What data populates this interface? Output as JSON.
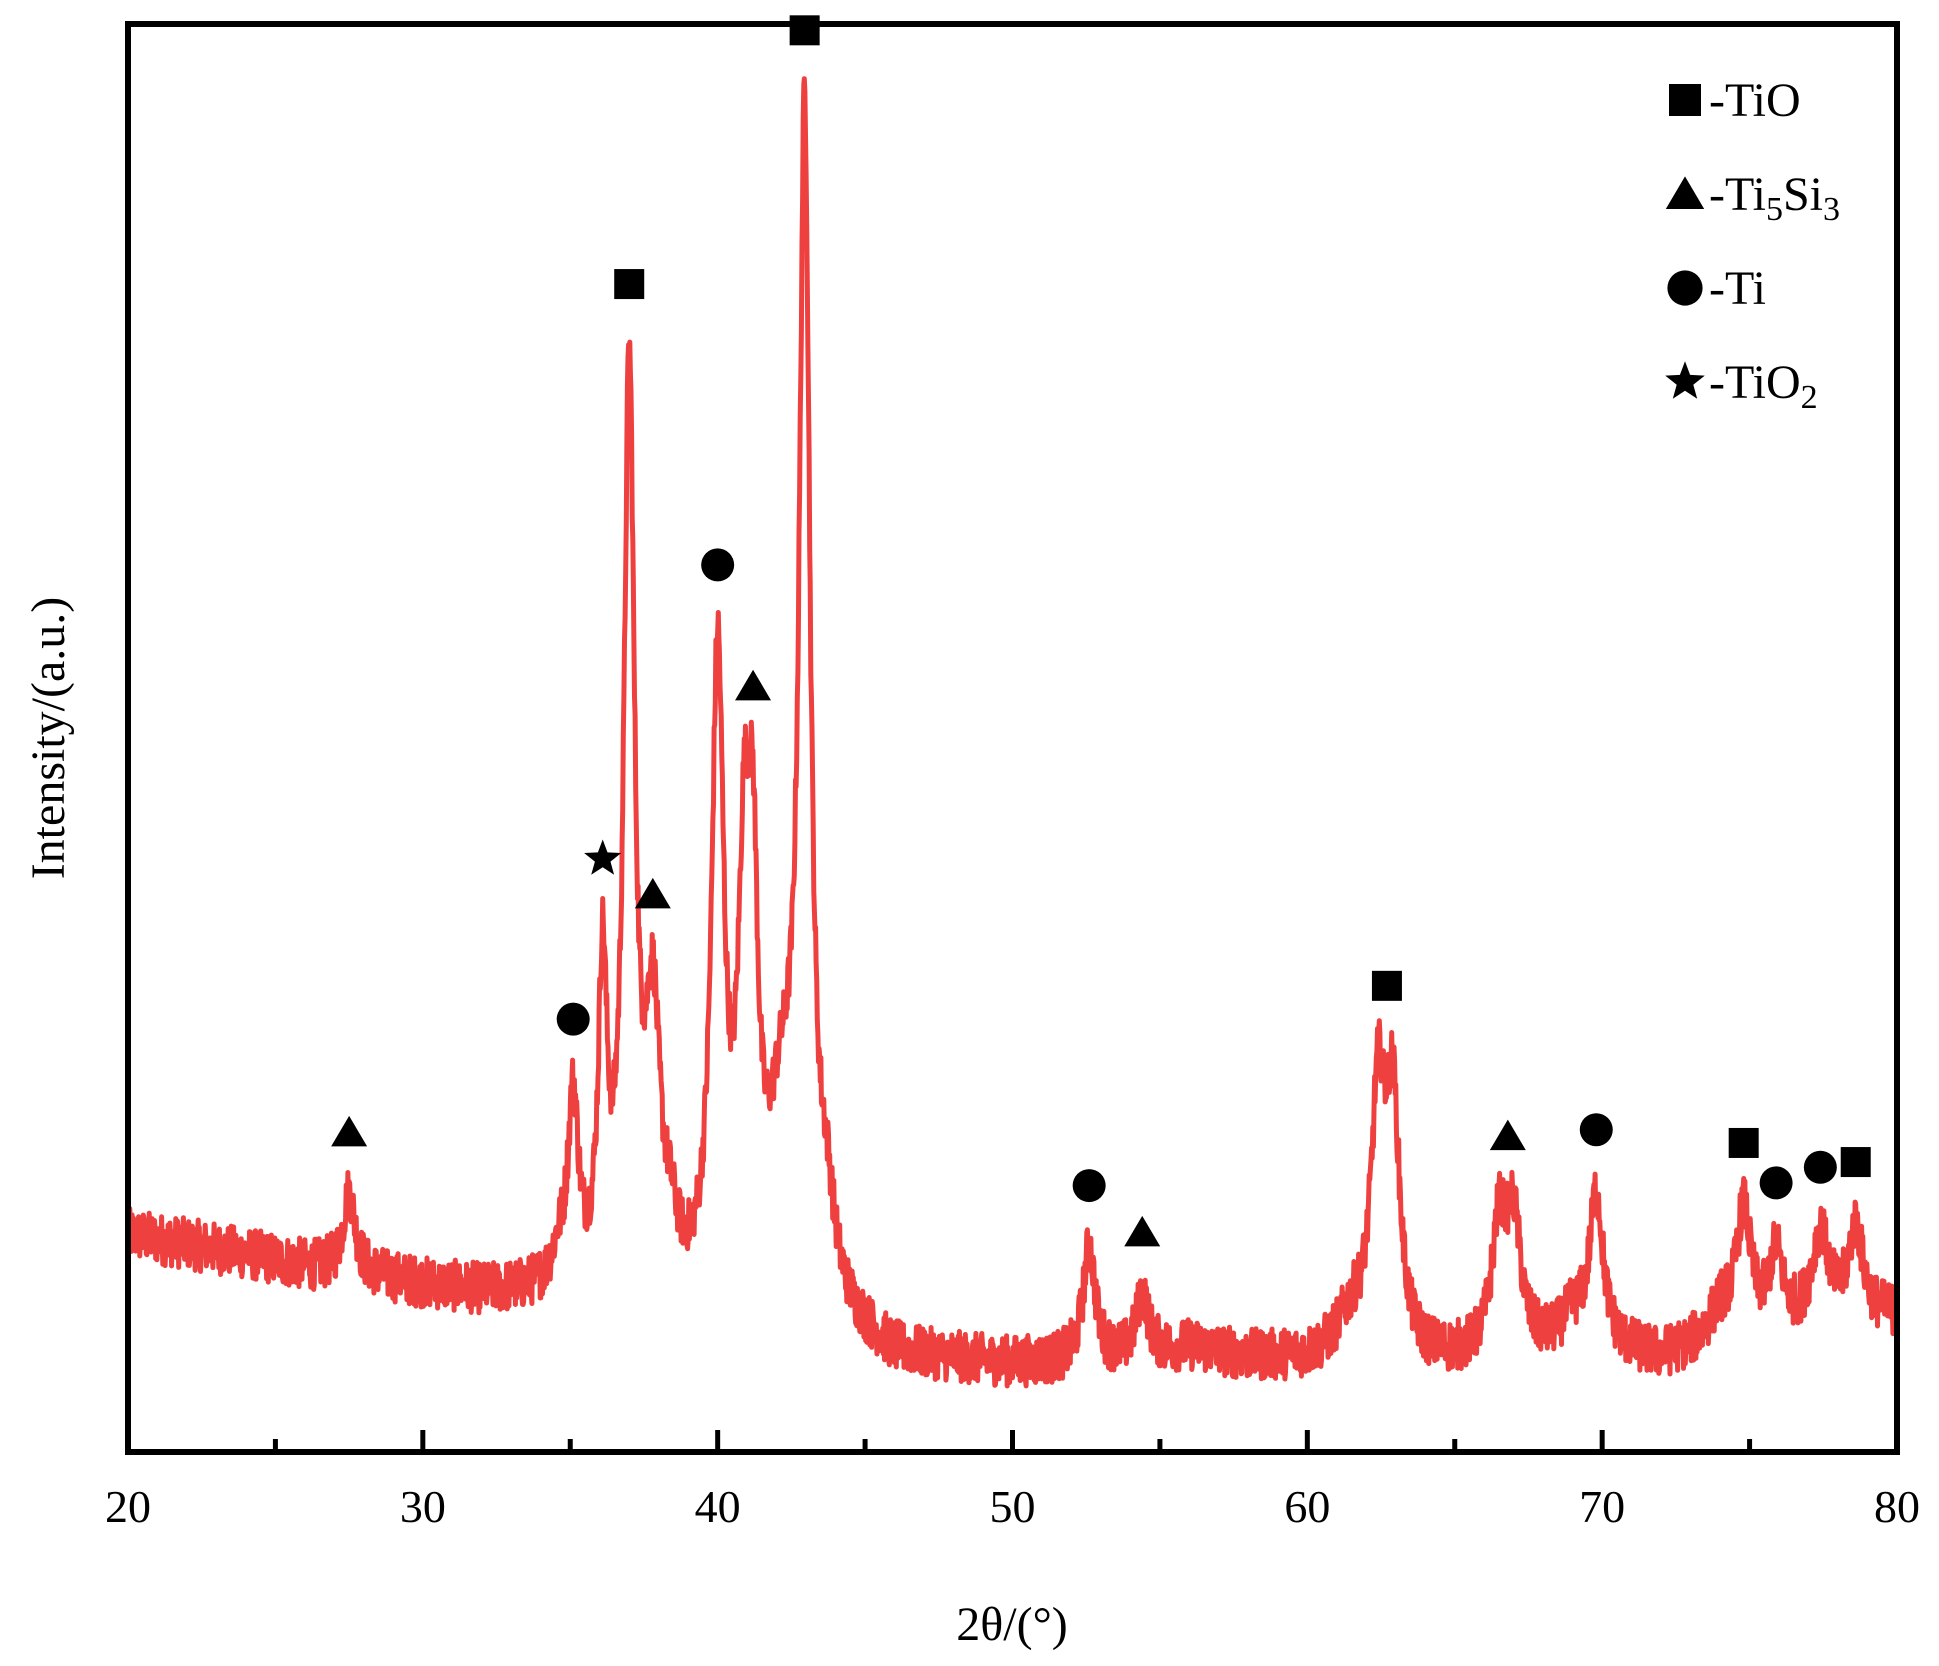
{
  "chart_data": {
    "type": "line",
    "xlabel": "2θ/(°)",
    "ylabel": "Intensity/(a.u.)",
    "xlim": [
      20,
      80
    ],
    "ylim": [
      0,
      100
    ],
    "x_major_ticks": [
      20,
      30,
      40,
      50,
      60,
      70,
      80
    ],
    "x_minor_ticks": [
      25,
      35,
      45,
      55,
      65,
      75
    ],
    "x_tick_labels": [
      "20",
      "30",
      "40",
      "50",
      "60",
      "70",
      "80"
    ],
    "y_tick_labels_shown": false,
    "grid": false,
    "legend_position": "top-right",
    "line_color": "#ef4040",
    "baseline": [
      [
        20,
        15.2
      ],
      [
        22,
        14.5
      ],
      [
        24,
        13.8
      ],
      [
        26,
        12.9
      ],
      [
        28,
        12.3
      ],
      [
        30,
        11.6
      ],
      [
        32,
        11.0
      ],
      [
        34,
        10.8
      ],
      [
        36,
        10.2
      ],
      [
        38,
        9.6
      ],
      [
        40,
        9.3
      ],
      [
        42,
        9.0
      ],
      [
        44,
        8.6
      ],
      [
        46,
        6.4
      ],
      [
        48,
        6.2
      ],
      [
        50,
        6.0
      ],
      [
        52,
        6.1
      ],
      [
        54,
        6.4
      ],
      [
        56,
        7.2
      ],
      [
        58,
        6.5
      ],
      [
        60,
        6.3
      ],
      [
        62,
        6.5
      ],
      [
        64,
        6.2
      ],
      [
        66,
        6.4
      ],
      [
        68,
        6.8
      ],
      [
        70,
        7.0
      ],
      [
        72,
        6.4
      ],
      [
        74,
        7.5
      ],
      [
        76,
        8.3
      ],
      [
        78,
        9.0
      ],
      [
        80,
        9.5
      ]
    ],
    "peaks": [
      {
        "x": 27.5,
        "height": 5.6,
        "width": 0.25
      },
      {
        "x": 34.6,
        "height": 2.0,
        "width": 0.3
      },
      {
        "x": 35.1,
        "height": 13.0,
        "width": 0.22
      },
      {
        "x": 36.1,
        "height": 21.8,
        "width": 0.18
      },
      {
        "x": 37.0,
        "height": 63.5,
        "width": 0.22
      },
      {
        "x": 37.8,
        "height": 18.5,
        "width": 0.3
      },
      {
        "x": 38.4,
        "height": 3.0,
        "width": 0.3
      },
      {
        "x": 40.0,
        "height": 44.0,
        "width": 0.25
      },
      {
        "x": 40.9,
        "height": 26.0,
        "width": 0.25
      },
      {
        "x": 41.2,
        "height": 22.0,
        "width": 0.2
      },
      {
        "x": 42.2,
        "height": 12.0,
        "width": 0.6
      },
      {
        "x": 42.95,
        "height": 80.0,
        "width": 0.22
      },
      {
        "x": 43.7,
        "height": 5.0,
        "width": 0.3
      },
      {
        "x": 52.6,
        "height": 8.0,
        "width": 0.25
      },
      {
        "x": 54.4,
        "height": 4.3,
        "width": 0.25
      },
      {
        "x": 62.4,
        "height": 17.0,
        "width": 0.28
      },
      {
        "x": 62.9,
        "height": 16.5,
        "width": 0.28
      },
      {
        "x": 61.5,
        "height": 2.5,
        "width": 0.6
      },
      {
        "x": 66.5,
        "height": 8.5,
        "width": 0.3
      },
      {
        "x": 67.0,
        "height": 8.5,
        "width": 0.3
      },
      {
        "x": 69.8,
        "height": 10.5,
        "width": 0.28
      },
      {
        "x": 69.0,
        "height": 2.0,
        "width": 0.5
      },
      {
        "x": 74.8,
        "height": 8.5,
        "width": 0.3
      },
      {
        "x": 74.0,
        "height": 2.0,
        "width": 0.5
      },
      {
        "x": 75.9,
        "height": 5.2,
        "width": 0.28
      },
      {
        "x": 77.4,
        "height": 6.2,
        "width": 0.35
      },
      {
        "x": 78.6,
        "height": 6.3,
        "width": 0.3
      }
    ],
    "noise_amplitude": 1.8,
    "legend": [
      {
        "marker": "square",
        "label": "-TiO",
        "label_main": "-TiO"
      },
      {
        "marker": "triangle",
        "label": "-Ti5Si3",
        "label_main": "-Ti",
        "sub1": "5",
        "mid": "Si",
        "sub2": "3"
      },
      {
        "marker": "circle",
        "label": "-Ti",
        "label_main": "-Ti"
      },
      {
        "marker": "star",
        "label": "-TiO2",
        "label_main": "-TiO",
        "sub1": "2"
      }
    ],
    "annotations": [
      {
        "marker": "triangle",
        "x": 27.5
      },
      {
        "marker": "circle",
        "x": 35.1
      },
      {
        "marker": "star",
        "x": 36.1
      },
      {
        "marker": "square",
        "x": 37.0
      },
      {
        "marker": "triangle",
        "x": 37.8
      },
      {
        "marker": "circle",
        "x": 40.0
      },
      {
        "marker": "triangle",
        "x": 41.2
      },
      {
        "marker": "square",
        "x": 42.95
      },
      {
        "marker": "circle",
        "x": 52.6
      },
      {
        "marker": "triangle",
        "x": 54.4
      },
      {
        "marker": "square",
        "x": 62.7
      },
      {
        "marker": "triangle",
        "x": 66.8
      },
      {
        "marker": "circle",
        "x": 69.8
      },
      {
        "marker": "square",
        "x": 74.8
      },
      {
        "marker": "circle",
        "x": 75.9
      },
      {
        "marker": "circle",
        "x": 77.4
      },
      {
        "marker": "square",
        "x": 78.6
      }
    ]
  }
}
